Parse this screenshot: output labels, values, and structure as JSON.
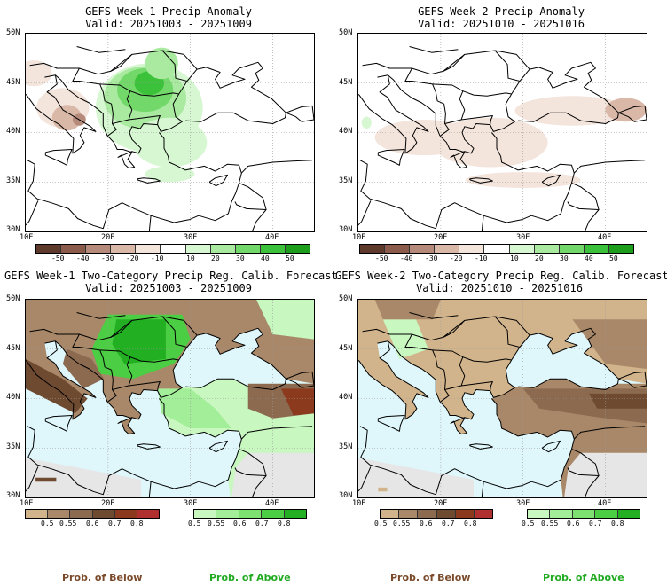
{
  "panels": [
    {
      "title": "GEFS Week-1 Precip Anomaly",
      "valid": "Valid: 20251003 - 20251009"
    },
    {
      "title": "GEFS Week-2 Precip Anomaly",
      "valid": "Valid: 20251010 - 20251016"
    },
    {
      "title": "GEFS Week-1 Two-Category Precip Reg. Calib. Forecast",
      "valid": "Valid: 20251003 - 20251009"
    },
    {
      "title": "GEFS Week-2 Two-Category Precip Reg. Calib. Forecast",
      "valid": "Valid: 20251010 - 20251016"
    }
  ],
  "axes": {
    "lat_labels": [
      "50N",
      "45N",
      "40N",
      "35N",
      "30N"
    ],
    "lon_labels": [
      "10E",
      "20E",
      "30E",
      "40E"
    ]
  },
  "anomaly_colorbar": {
    "labels": [
      "-50",
      "-40",
      "-30",
      "-20",
      "-10",
      "10",
      "20",
      "30",
      "40",
      "50"
    ],
    "colors": [
      "#5e3a2c",
      "#8a5a4a",
      "#b58a7a",
      "#d9b8a8",
      "#f3e4dc",
      "#ffffff",
      "#d7f7d2",
      "#a9eaa0",
      "#73d86a",
      "#3cc23a",
      "#1c9e1c"
    ]
  },
  "below_colorbar": {
    "labels": [
      "0.5",
      "0.55",
      "0.6",
      "0.7",
      "0.8"
    ],
    "colors": [
      "#d2b48c",
      "#a88868",
      "#8b6a50",
      "#6e4a30",
      "#8b3a1e",
      "#b03030"
    ]
  },
  "above_colorbar": {
    "labels": [
      "0.5",
      "0.55",
      "0.6",
      "0.7",
      "0.8"
    ],
    "colors": [
      "#c8f7c0",
      "#a3ee98",
      "#7ee070",
      "#4cce44",
      "#22b022"
    ]
  },
  "footer": {
    "below_label": "Prob. of Below",
    "above_label": "Prob. of Above",
    "below_color": "#7a4a2a",
    "above_color": "#22aa22"
  },
  "colors": {
    "sea_prob": "#dff7fb",
    "land_gray": "#e6e6e6",
    "coast": "#000000"
  }
}
